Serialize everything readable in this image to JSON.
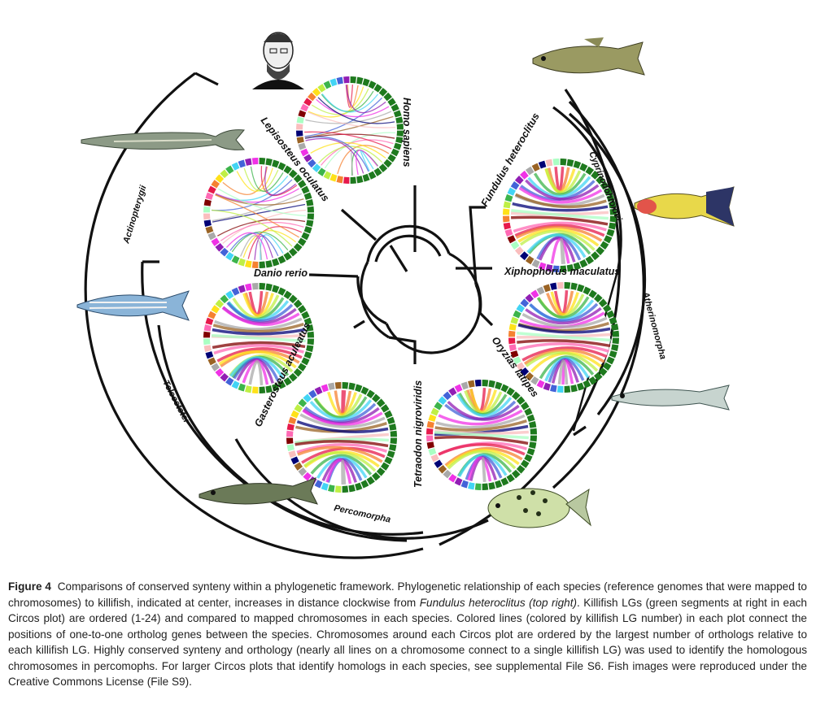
{
  "figure": {
    "species": [
      {
        "id": "homo",
        "label": "Homo sapiens"
      },
      {
        "id": "lepisosteus",
        "label": "Lepisosteus oculatus"
      },
      {
        "id": "danio",
        "label": "Danio rerio"
      },
      {
        "id": "gasterosteus",
        "label": "Gasterosteus aculeatus"
      },
      {
        "id": "tetraodon",
        "label": "Tetraodon nigroviridis"
      },
      {
        "id": "oryzias",
        "label": "Oryzias latipes"
      },
      {
        "id": "xiphophorus",
        "label": "Xiphophorus maculatus"
      },
      {
        "id": "fundulus",
        "label": "Fundulus heteroclitus"
      }
    ],
    "clades": [
      {
        "id": "actinopterygii",
        "label": "Actinopterygii"
      },
      {
        "id": "teleoststei",
        "label": "Teleoststei"
      },
      {
        "id": "percomorpha",
        "label": "Percomorpha"
      },
      {
        "id": "atherinomorpha",
        "label": "Atherinomorpha"
      },
      {
        "id": "cyprinodontoidei",
        "label": "Cyprinodontoidei"
      }
    ],
    "colors": {
      "killifish_lg": "#1e7a1e",
      "palette": [
        "#e6194b",
        "#f58231",
        "#ffe119",
        "#bfef45",
        "#3cb44b",
        "#42d4f4",
        "#4363d8",
        "#911eb4",
        "#f032e6",
        "#a9a9a9",
        "#9a6324",
        "#000075",
        "#fabebe",
        "#aaffc3",
        "#800000",
        "#ff69b4"
      ]
    }
  },
  "caption": {
    "label": "Figure 4",
    "p1": "Comparisons of conserved synteny within a phylogenetic framework. Phylogenetic relationship of each species (reference genomes that were mapped to chromosomes) to killifish, indicated at center, increases in distance clockwise from ",
    "p1_italic": "Fundulus heteroclitus (top right)",
    "p2": ". Killifish LGs (green segments at right in each Circos plot) are ordered (1-24) and compared to mapped chromosomes in each species. Colored lines (colored by killifish LG number) in each plot connect the positions of one-to-one ortholog genes between the species. Chromosomes around each Circos plot are ordered by the largest number of orthologs relative to each killifish LG. Highly conserved synteny and orthology (nearly all lines on a chromosome connect to a single killifish LG) was used to identify the homologous chromosomes in percomophs. For larger Circos plots that identify homologs in each species, see supplemental File S6. Fish images were reproduced under the Creative Commons License (File S9)."
  }
}
